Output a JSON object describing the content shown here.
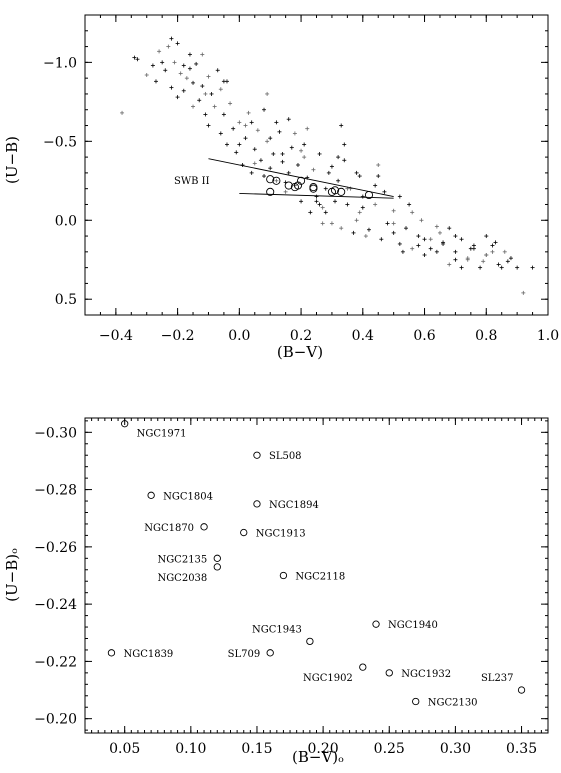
{
  "chart_data": [
    {
      "type": "scatter",
      "xlabel": "(B−V)",
      "ylabel": "(U−B)",
      "xlim": [
        -0.5,
        1.0
      ],
      "ylim": [
        0.6,
        -1.3
      ],
      "y_inverted": true,
      "xticks": [
        -0.4,
        -0.2,
        0.0,
        0.2,
        0.4,
        0.6,
        0.8,
        1.0
      ],
      "xtick_labels": [
        "−0.4",
        "−0.2",
        "0.0",
        "0.2",
        "0.4",
        "0.6",
        "0.8",
        "1.0"
      ],
      "yticks": [
        -1.0,
        -0.5,
        0.0,
        0.5
      ],
      "ytick_labels": [
        "−1.0",
        "−0.5",
        "0.0",
        "0.5"
      ],
      "annotation": "SWB II",
      "box_lines": [
        {
          "x": [
            -0.1,
            0.5
          ],
          "y": [
            -0.39,
            -0.15
          ]
        },
        {
          "x": [
            0.0,
            0.5
          ],
          "y": [
            -0.17,
            -0.14
          ]
        }
      ],
      "cluster_circles": {
        "x": [
          0.1,
          0.12,
          0.16,
          0.18,
          0.19,
          0.2,
          0.24,
          0.24,
          0.3,
          0.31,
          0.33,
          0.42,
          0.1
        ],
        "y": [
          -0.26,
          -0.25,
          -0.22,
          -0.21,
          -0.22,
          -0.25,
          -0.21,
          -0.2,
          -0.18,
          -0.19,
          -0.18,
          -0.16,
          -0.18
        ]
      },
      "field_stars": {
        "x": [
          -0.38,
          -0.34,
          -0.33,
          -0.3,
          -0.28,
          -0.27,
          -0.26,
          -0.25,
          -0.24,
          -0.23,
          -0.22,
          -0.22,
          -0.21,
          -0.2,
          -0.2,
          -0.19,
          -0.18,
          -0.18,
          -0.17,
          -0.16,
          -0.15,
          -0.15,
          -0.14,
          -0.13,
          -0.12,
          -0.12,
          -0.11,
          -0.1,
          -0.1,
          -0.09,
          -0.08,
          -0.07,
          -0.06,
          -0.06,
          -0.05,
          -0.04,
          -0.03,
          -0.02,
          -0.01,
          0.0,
          0.01,
          0.02,
          0.03,
          0.04,
          0.05,
          0.06,
          0.07,
          0.08,
          0.09,
          0.1,
          0.11,
          0.12,
          0.13,
          0.14,
          0.15,
          0.16,
          0.17,
          0.18,
          0.19,
          0.2,
          0.21,
          0.22,
          0.23,
          0.24,
          0.25,
          0.26,
          0.27,
          0.28,
          0.29,
          0.3,
          0.31,
          0.32,
          0.33,
          0.34,
          0.35,
          0.36,
          0.37,
          0.38,
          0.39,
          0.4,
          0.42,
          0.44,
          0.46,
          0.48,
          0.5,
          0.52,
          0.54,
          0.56,
          0.58,
          0.6,
          0.62,
          0.64,
          0.66,
          0.68,
          0.7,
          0.72,
          0.74,
          0.76,
          0.78,
          0.8,
          0.82,
          0.84,
          0.86,
          0.88,
          0.9,
          0.92,
          0.95,
          0.0,
          0.05,
          0.1,
          0.15,
          0.2,
          0.25,
          0.3,
          0.35,
          0.4,
          0.45,
          0.5,
          0.55,
          0.6,
          0.65,
          0.7,
          0.75,
          0.8,
          0.85,
          -0.05,
          0.02,
          0.08,
          0.14,
          0.22,
          0.28,
          0.34,
          0.41,
          0.47,
          0.53,
          0.59,
          0.66,
          0.72,
          0.79,
          0.83,
          0.12,
          0.18,
          0.26,
          0.32,
          0.38,
          0.44,
          0.5,
          0.56,
          0.62,
          0.68,
          0.74,
          0.8,
          -0.16,
          -0.11,
          -0.04,
          0.04,
          0.09,
          0.16,
          0.21,
          0.27,
          0.33,
          0.39,
          0.45,
          0.52,
          0.58,
          0.64,
          0.7,
          0.76,
          0.82,
          0.87
        ],
        "y": [
          -0.68,
          -1.03,
          -1.02,
          -0.92,
          -0.98,
          -0.88,
          -1.07,
          -1.0,
          -0.95,
          -1.1,
          -0.84,
          -1.15,
          -1.0,
          -0.78,
          -1.12,
          -0.93,
          -0.98,
          -0.82,
          -0.9,
          -1.05,
          -0.87,
          -0.72,
          -0.99,
          -0.76,
          -1.05,
          -0.85,
          -0.67,
          -0.91,
          -0.6,
          -0.8,
          -0.72,
          -0.95,
          -0.55,
          -0.83,
          -0.67,
          -0.48,
          -0.74,
          -0.58,
          -0.43,
          -0.62,
          -0.35,
          -0.52,
          -0.68,
          -0.3,
          -0.45,
          -0.57,
          -0.38,
          -0.28,
          -0.5,
          -0.33,
          -0.42,
          -0.25,
          -0.56,
          -0.37,
          -0.18,
          -0.3,
          -0.46,
          -0.22,
          -0.35,
          -0.12,
          -0.4,
          -0.27,
          -0.05,
          -0.32,
          -0.15,
          -0.42,
          -0.08,
          -0.2,
          -0.3,
          0.02,
          -0.12,
          -0.25,
          0.05,
          -0.38,
          -0.1,
          -0.2,
          0.08,
          -0.3,
          -0.05,
          -0.15,
          0.06,
          -0.1,
          0.12,
          0.02,
          -0.06,
          0.15,
          0.05,
          0.18,
          0.1,
          0.22,
          0.12,
          0.2,
          0.15,
          0.28,
          0.2,
          0.12,
          0.25,
          0.18,
          0.3,
          0.22,
          0.16,
          0.28,
          0.2,
          0.24,
          0.3,
          0.46,
          0.3,
          -0.48,
          -0.36,
          -0.52,
          -0.24,
          -0.44,
          -0.12,
          -0.34,
          -0.2,
          -0.08,
          -0.28,
          0.02,
          -0.1,
          0.12,
          0.08,
          0.25,
          0.18,
          0.22,
          0.3,
          -0.88,
          -0.6,
          -0.7,
          -0.42,
          -0.58,
          -0.05,
          -0.48,
          0.1,
          -0.18,
          0.2,
          0.0,
          0.14,
          0.3,
          0.26,
          0.14,
          -0.62,
          -0.55,
          -0.1,
          -0.4,
          0.0,
          -0.22,
          0.08,
          -0.05,
          0.18,
          0.05,
          0.24,
          0.1,
          -0.96,
          -0.8,
          -0.88,
          -0.62,
          -0.8,
          -0.64,
          -0.48,
          0.02,
          -0.6,
          -0.28,
          -0.35,
          -0.15,
          0.16,
          0.04,
          0.1,
          0.16,
          0.2,
          0.26
        ]
      }
    },
    {
      "type": "scatter",
      "xlabel": "(B−V)ₒ",
      "ylabel": "(U−B)ₒ",
      "xlim": [
        0.02,
        0.37
      ],
      "ylim": [
        -0.305,
        -0.195
      ],
      "xticks": [
        0.05,
        0.1,
        0.15,
        0.2,
        0.25,
        0.3,
        0.35
      ],
      "xtick_labels": [
        "0.05",
        "0.10",
        "0.15",
        "0.20",
        "0.25",
        "0.30",
        "0.35"
      ],
      "yticks": [
        -0.3,
        -0.28,
        -0.26,
        -0.24,
        -0.22,
        -0.2
      ],
      "ytick_labels": [
        "−0.30",
        "−0.28",
        "−0.26",
        "−0.24",
        "−0.22",
        "−0.20"
      ],
      "points": [
        {
          "name": "NGC1971",
          "x": 0.05,
          "y": -0.303,
          "label_pos": "below-right"
        },
        {
          "name": "SL508",
          "x": 0.15,
          "y": -0.292,
          "label_pos": "right"
        },
        {
          "name": "NGC1804",
          "x": 0.07,
          "y": -0.278,
          "label_pos": "right"
        },
        {
          "name": "NGC1894",
          "x": 0.15,
          "y": -0.275,
          "label_pos": "right"
        },
        {
          "name": "NGC1870",
          "x": 0.11,
          "y": -0.267,
          "label_pos": "left"
        },
        {
          "name": "NGC1913",
          "x": 0.14,
          "y": -0.265,
          "label_pos": "right"
        },
        {
          "name": "NGC2135",
          "x": 0.12,
          "y": -0.256,
          "label_pos": "left"
        },
        {
          "name": "NGC2038",
          "x": 0.12,
          "y": -0.253,
          "label_pos": "below-left"
        },
        {
          "name": "NGC2118",
          "x": 0.17,
          "y": -0.25,
          "label_pos": "right"
        },
        {
          "name": "NGC1940",
          "x": 0.24,
          "y": -0.233,
          "label_pos": "right"
        },
        {
          "name": "NGC1943",
          "x": 0.19,
          "y": -0.227,
          "label_pos": "above-left"
        },
        {
          "name": "NGC1839",
          "x": 0.04,
          "y": -0.223,
          "label_pos": "right"
        },
        {
          "name": "SL709",
          "x": 0.16,
          "y": -0.223,
          "label_pos": "left"
        },
        {
          "name": "NGC1902",
          "x": 0.23,
          "y": -0.218,
          "label_pos": "below-left"
        },
        {
          "name": "NGC1932",
          "x": 0.25,
          "y": -0.216,
          "label_pos": "right"
        },
        {
          "name": "SL237",
          "x": 0.35,
          "y": -0.21,
          "label_pos": "above-left"
        },
        {
          "name": "NGC2130",
          "x": 0.27,
          "y": -0.206,
          "label_pos": "right"
        }
      ]
    }
  ]
}
